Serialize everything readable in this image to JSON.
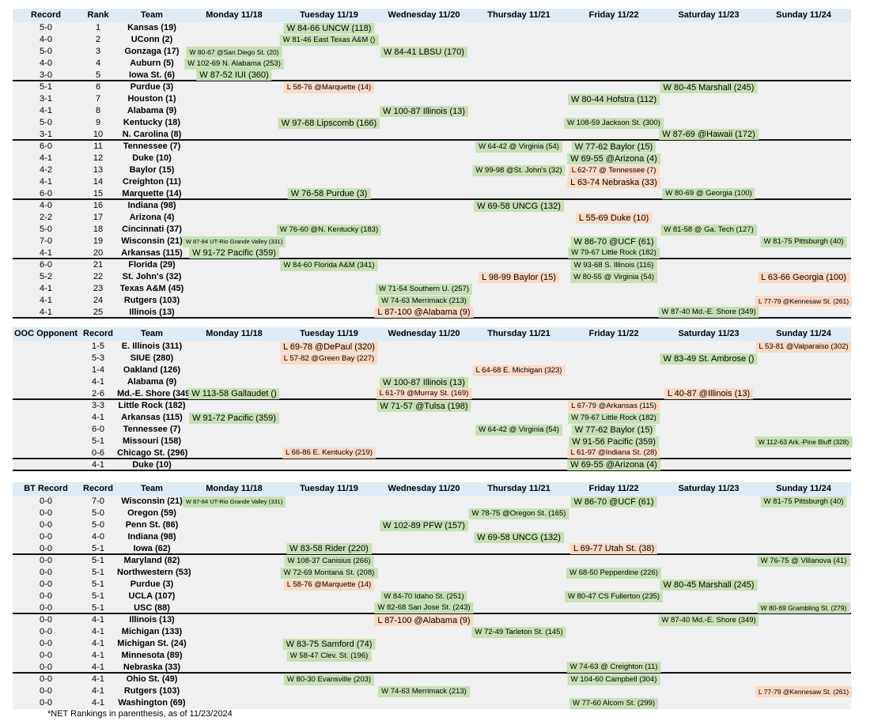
{
  "footnote": "*NET Rankings in parenthesis, as of 11/23/2024",
  "colors": {
    "win_bg": "#c6e0b4",
    "loss_bg": "#fbd9c3",
    "header_bg": "#dcebf6",
    "row_bg": "#f0f0f0"
  },
  "day_headers": [
    "Monday 11/18",
    "Tuesday 11/19",
    "Wednesday 11/20",
    "Thursday 11/21",
    "Friday 11/22",
    "Saturday 11/23",
    "Sunday 11/24"
  ],
  "tables": [
    {
      "name": "top25-schedule-table",
      "col1_header": "Record",
      "col2_header": "Rank",
      "team_header": "Team",
      "rows": [
        {
          "col1": "5-0",
          "col2": "1",
          "team": "Kansas (19)",
          "games": [
            null,
            "W 84-66 UNCW (118)",
            null,
            null,
            null,
            null,
            null
          ]
        },
        {
          "col1": "4-0",
          "col2": "2",
          "team": "UConn (2)",
          "games": [
            null,
            "W 81-46 East Texas A&M ()",
            null,
            null,
            null,
            null,
            null
          ]
        },
        {
          "col1": "5-0",
          "col2": "3",
          "team": "Gonzaga (17)",
          "games": [
            "W 80-67 @San Diego St. (20)",
            null,
            "W 84-41 LBSU (170)",
            null,
            null,
            null,
            null
          ]
        },
        {
          "col1": "4-0",
          "col2": "4",
          "team": "Auburn (5)",
          "games": [
            "W 102-69 N. Alabama (253)",
            null,
            null,
            null,
            null,
            null,
            null
          ]
        },
        {
          "col1": "3-0",
          "col2": "5",
          "team": "Iowa St. (6)",
          "games": [
            "W 87-52 IUI (360)",
            null,
            null,
            null,
            null,
            null,
            null
          ],
          "divider": true
        },
        {
          "col1": "5-1",
          "col2": "6",
          "team": "Purdue (3)",
          "games": [
            null,
            "L 58-76 @Marquette (14)",
            null,
            null,
            null,
            "W 80-45 Marshall (245)",
            null
          ]
        },
        {
          "col1": "3-1",
          "col2": "7",
          "team": "Houston (1)",
          "games": [
            null,
            null,
            null,
            null,
            "W 80-44 Hofstra (112)",
            null,
            null
          ]
        },
        {
          "col1": "4-1",
          "col2": "8",
          "team": "Alabama (9)",
          "games": [
            null,
            null,
            "W 100-87 Illinois (13)",
            null,
            null,
            null,
            null
          ]
        },
        {
          "col1": "5-0",
          "col2": "9",
          "team": "Kentucky (18)",
          "games": [
            null,
            "W 97-68 Lipscomb (166)",
            null,
            null,
            "W 108-59 Jackson St. (300)",
            null,
            null
          ]
        },
        {
          "col1": "3-1",
          "col2": "10",
          "team": "N. Carolina (8)",
          "games": [
            null,
            null,
            null,
            null,
            null,
            "W 87-69 @Hawaii (172)",
            null
          ],
          "divider": true
        },
        {
          "col1": "6-0",
          "col2": "11",
          "team": "Tennessee (7)",
          "games": [
            null,
            null,
            null,
            "W 64-42 @ Virginia (54)",
            "W 77-62 Baylor (15)",
            null,
            null
          ]
        },
        {
          "col1": "4-1",
          "col2": "12",
          "team": "Duke (10)",
          "games": [
            null,
            null,
            null,
            null,
            "W 69-55 @Arizona (4)",
            null,
            null
          ]
        },
        {
          "col1": "4-2",
          "col2": "13",
          "team": "Baylor (15)",
          "games": [
            null,
            null,
            null,
            "W 99-98 @St. John's (32)",
            "L 62-77 @ Tennessee (7)",
            null,
            null
          ]
        },
        {
          "col1": "4-1",
          "col2": "14",
          "team": "Creighton (11)",
          "games": [
            null,
            null,
            null,
            null,
            "L 63-74 Nebraska (33)",
            null,
            null
          ]
        },
        {
          "col1": "6-0",
          "col2": "15",
          "team": "Marquette (14)",
          "games": [
            null,
            "W 76-58 Purdue (3)",
            null,
            null,
            null,
            "W 80-69 @ Georgia (100)",
            null
          ],
          "divider": true
        },
        {
          "col1": "4-0",
          "col2": "16",
          "team": "Indiana (98)",
          "games": [
            null,
            null,
            null,
            "W 69-58 UNCG (132)",
            null,
            null,
            null
          ]
        },
        {
          "col1": "2-2",
          "col2": "17",
          "team": "Arizona (4)",
          "games": [
            null,
            null,
            null,
            null,
            "L 55-69 Duke (10)",
            null,
            null
          ]
        },
        {
          "col1": "5-0",
          "col2": "18",
          "team": "Cincinnati (37)",
          "games": [
            null,
            "W 76-60 @N. Kentucky (183)",
            null,
            null,
            null,
            "W 81-58 @ Ga. Tech (127)",
            null
          ]
        },
        {
          "col1": "7-0",
          "col2": "19",
          "team": "Wisconsin (21)",
          "games": [
            "W 87-84 UT-Rio Grande Valley (331)",
            null,
            null,
            null,
            "W 86-70 @UCF (61)",
            null,
            "W 81-75 Pittsburgh (40)"
          ]
        },
        {
          "col1": "4-1",
          "col2": "20",
          "team": "Arkansas (115)",
          "games": [
            "W 91-72 Pacific (359)",
            null,
            null,
            null,
            "W 79-67 Little Rock (182)",
            null,
            null
          ],
          "divider": true
        },
        {
          "col1": "6-0",
          "col2": "21",
          "team": "Florida (29)",
          "games": [
            null,
            "W 84-60 Florida A&M (341)",
            null,
            null,
            "W 93-68 S. Illinois (116)",
            null,
            null
          ]
        },
        {
          "col1": "5-2",
          "col2": "22",
          "team": "St. John's (32)",
          "games": [
            null,
            null,
            null,
            "L 98-99 Baylor (15)",
            "W 80-55 @ Virginia (54)",
            null,
            "L 63-66 Georgia (100)"
          ]
        },
        {
          "col1": "4-1",
          "col2": "23",
          "team": "Texas A&M (45)",
          "games": [
            null,
            null,
            "W 71-54 Southern U. (257)",
            null,
            null,
            null,
            null
          ]
        },
        {
          "col1": "4-1",
          "col2": "24",
          "team": "Rutgers (103)",
          "games": [
            null,
            null,
            "W 74-63 Merrimack (213)",
            null,
            null,
            null,
            "L 77-79 @Kennesaw St. (261)"
          ]
        },
        {
          "col1": "4-1",
          "col2": "25",
          "team": "Illinois (13)",
          "games": [
            null,
            null,
            "L 87-100 @Alabama (9)",
            null,
            null,
            "W 87-40 Md.-E. Shore (349)",
            null
          ],
          "divider": true
        }
      ]
    },
    {
      "name": "ooc-opponent-schedule-table",
      "col1_header": "OOC Opponent",
      "col2_header": "Record",
      "team_header": "Team",
      "rows": [
        {
          "col1": "",
          "col2": "1-5",
          "team": "E. Illinois (311)",
          "games": [
            null,
            "L 69-78 @DePaul (320)",
            null,
            null,
            null,
            null,
            "L 53-81 @Valparaiso (302)"
          ]
        },
        {
          "col1": "",
          "col2": "5-3",
          "team": "SIUE (280)",
          "games": [
            null,
            "L 57-82 @Green Bay (227)",
            null,
            null,
            null,
            "W 83-49 St. Ambrose ()",
            null
          ]
        },
        {
          "col1": "",
          "col2": "1-4",
          "team": "Oakland (126)",
          "games": [
            null,
            null,
            null,
            "L 64-68 E. Michigan (323)",
            null,
            null,
            null
          ]
        },
        {
          "col1": "",
          "col2": "4-1",
          "team": "Alabama (9)",
          "games": [
            null,
            null,
            "W 100-87 Illinois (13)",
            null,
            null,
            null,
            null
          ]
        },
        {
          "col1": "",
          "col2": "2-6",
          "team": "Md.-E. Shore (349)",
          "games": [
            "W 113-58 Gallaudet ()",
            null,
            "L 61-79 @Murray St. (169)",
            null,
            null,
            "L 40-87 @Illinois (13)",
            null
          ],
          "divider": true
        },
        {
          "col1": "",
          "col2": "3-3",
          "team": "Little Rock (182)",
          "games": [
            null,
            null,
            "W 71-57 @Tulsa (198)",
            null,
            "L 67-79 @Arkansas (115)",
            null,
            null
          ]
        },
        {
          "col1": "",
          "col2": "4-1",
          "team": "Arkansas (115)",
          "games": [
            "W 91-72 Pacific (359)",
            null,
            null,
            null,
            "W 79-67 Little Rock (182)",
            null,
            null
          ]
        },
        {
          "col1": "",
          "col2": "6-0",
          "team": "Tennessee (7)",
          "games": [
            null,
            null,
            null,
            "W 64-42 @ Virginia (54)",
            "W 77-62 Baylor (15)",
            null,
            null
          ]
        },
        {
          "col1": "",
          "col2": "5-1",
          "team": "Missouri (158)",
          "games": [
            null,
            null,
            null,
            null,
            "W 91-56 Pacific (359)",
            null,
            "W 112-63 Ark.-Pine Bluff (328)"
          ]
        },
        {
          "col1": "",
          "col2": "0-6",
          "team": "Chicago St. (296)",
          "games": [
            null,
            "L 66-86 E. Kentucky (219)",
            null,
            null,
            "L 61-97 @Indiana St. (28)",
            null,
            null
          ],
          "divider": true
        },
        {
          "col1": "",
          "col2": "4-1",
          "team": "Duke (10)",
          "games": [
            null,
            null,
            null,
            null,
            "W 69-55 @Arizona (4)",
            null,
            null
          ],
          "divider": true
        }
      ]
    },
    {
      "name": "big-ten-schedule-table",
      "col1_header": "BT Record",
      "col2_header": "Record",
      "team_header": "Team",
      "rows": [
        {
          "col1": "0-0",
          "col2": "7-0",
          "team": "Wisconsin (21)",
          "games": [
            "W 87-84 UT-Rio Grande Valley (331)",
            null,
            null,
            null,
            "W 86-70 @UCF (61)",
            null,
            "W 81-75 Pittsburgh (40)"
          ]
        },
        {
          "col1": "0-0",
          "col2": "5-0",
          "team": "Oregon (59)",
          "games": [
            null,
            null,
            null,
            "W 78-75 @Oregon St. (165)",
            null,
            null,
            null
          ]
        },
        {
          "col1": "0-0",
          "col2": "5-0",
          "team": "Penn St. (86)",
          "games": [
            null,
            null,
            "W 102-89 PFW (157)",
            null,
            null,
            null,
            null
          ]
        },
        {
          "col1": "0-0",
          "col2": "4-0",
          "team": "Indiana (98)",
          "games": [
            null,
            null,
            null,
            "W 69-58 UNCG (132)",
            null,
            null,
            null
          ]
        },
        {
          "col1": "0-0",
          "col2": "5-1",
          "team": "Iowa (62)",
          "games": [
            null,
            "W 83-58 Rider (220)",
            null,
            null,
            "L 69-77 Utah St. (38)",
            null,
            null
          ],
          "divider": true
        },
        {
          "col1": "0-0",
          "col2": "5-1",
          "team": "Maryland (82)",
          "games": [
            null,
            "W 108-37 Canisius (266)",
            null,
            null,
            null,
            null,
            "W 76-75 @ Villanova (41)"
          ]
        },
        {
          "col1": "0-0",
          "col2": "5-1",
          "team": "Northwestern (53)",
          "games": [
            null,
            "W 72-69 Montana St. (208)",
            null,
            null,
            "W 68-50 Pepperdine (226)",
            null,
            null
          ]
        },
        {
          "col1": "0-0",
          "col2": "5-1",
          "team": "Purdue (3)",
          "games": [
            null,
            "L 58-76 @Marquette (14)",
            null,
            null,
            null,
            "W 80-45 Marshall (245)",
            null
          ]
        },
        {
          "col1": "0-0",
          "col2": "5-1",
          "team": "UCLA (107)",
          "games": [
            null,
            null,
            "W 84-70 Idaho St. (251)",
            null,
            "W 80-47 CS Fullerton (235)",
            null,
            null
          ]
        },
        {
          "col1": "0-0",
          "col2": "5-1",
          "team": "USC (88)",
          "games": [
            null,
            null,
            "W 82-68 San Jose St. (243)",
            null,
            null,
            null,
            "W 80-69 Grambling St. (279)"
          ],
          "divider": true
        },
        {
          "col1": "0-0",
          "col2": "4-1",
          "team": "Illinois (13)",
          "games": [
            null,
            null,
            "L 87-100 @Alabama (9)",
            null,
            null,
            "W 87-40 Md.-E. Shore (349)",
            null
          ]
        },
        {
          "col1": "0-0",
          "col2": "4-1",
          "team": "Michigan (133)",
          "games": [
            null,
            null,
            null,
            "W 72-49 Tarleton St. (145)",
            null,
            null,
            null
          ]
        },
        {
          "col1": "0-0",
          "col2": "4-1",
          "team": "Michigan St. (24)",
          "games": [
            null,
            "W 83-75 Samford (74)",
            null,
            null,
            null,
            null,
            null
          ]
        },
        {
          "col1": "0-0",
          "col2": "4-1",
          "team": "Minnesota (89)",
          "games": [
            null,
            "W 58-47 Clev. St. (196)",
            null,
            null,
            null,
            null,
            null
          ]
        },
        {
          "col1": "0-0",
          "col2": "4-1",
          "team": "Nebraska (33)",
          "games": [
            null,
            null,
            null,
            null,
            "W 74-63 @ Creighton (11)",
            null,
            null
          ],
          "divider": true
        },
        {
          "col1": "0-0",
          "col2": "4-1",
          "team": "Ohio St. (49)",
          "games": [
            null,
            "W 80-30 Evansville (203)",
            null,
            null,
            "W 104-60 Campbell (304)",
            null,
            null
          ]
        },
        {
          "col1": "0-0",
          "col2": "4-1",
          "team": "Rutgers (103)",
          "games": [
            null,
            null,
            "W 74-63 Merrimack (213)",
            null,
            null,
            null,
            "L 77-79 @Kennesaw St. (261)"
          ]
        },
        {
          "col1": "0-0",
          "col2": "4-1",
          "team": "Washington (69)",
          "games": [
            null,
            null,
            null,
            null,
            "W 77-60 Alcorn St. (299)",
            null,
            null
          ]
        }
      ]
    }
  ]
}
